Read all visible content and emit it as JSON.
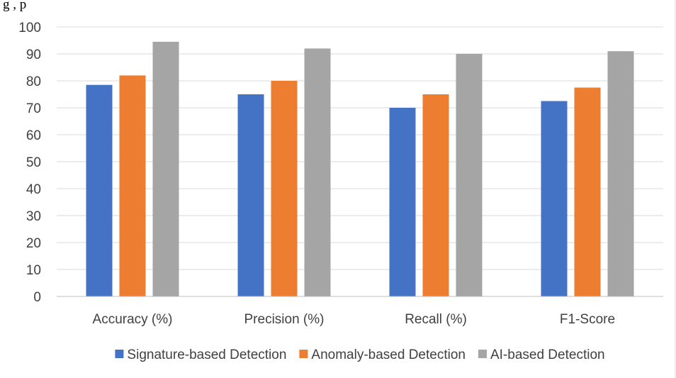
{
  "header_text": "g                                                       ,                                       p",
  "chart_data": {
    "type": "bar",
    "categories": [
      "Accuracy (%)",
      "Precision (%)",
      "Recall (%)",
      "F1-Score"
    ],
    "series": [
      {
        "name": "Signature-based Detection",
        "color": "#4472C4",
        "values": [
          78.5,
          75,
          70,
          72.5
        ]
      },
      {
        "name": "Anomaly-based Detection",
        "color": "#ED7D31",
        "values": [
          82,
          80,
          75,
          77.5
        ]
      },
      {
        "name": "AI-based Detection",
        "color": "#A5A5A5",
        "values": [
          94.5,
          92,
          90,
          91
        ]
      }
    ],
    "ylim": [
      0,
      100
    ],
    "yticks": [
      0,
      10,
      20,
      30,
      40,
      50,
      60,
      70,
      80,
      90,
      100
    ],
    "grid": true,
    "legend_position": "bottom",
    "gridline_color": "#D9D9D9"
  }
}
